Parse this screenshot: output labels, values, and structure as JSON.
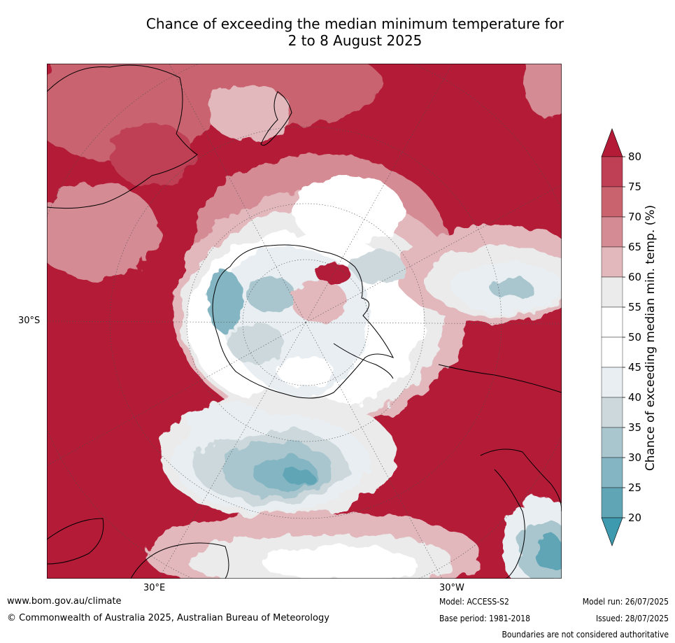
{
  "header": {
    "title_line1": "Chance of exceeding the median minimum temperature for",
    "title_line2": "2 to 8 August 2025"
  },
  "map": {
    "lat_label": "30°S",
    "lon_label_left": "30°E",
    "lon_label_right": "30°W",
    "palette": {
      "dark_red": "#b31b37",
      "red_75": "#bf3f55",
      "red_70": "#c9646f",
      "red_65": "#d48b93",
      "red_60": "#e2b8bd",
      "grey_55": "#ebebeb",
      "white_50": "#ffffff",
      "blue_40": "#e8eef1",
      "blue_35": "#cdd8dc",
      "blue_30": "#a9c6ce",
      "blue_25": "#84b5c3",
      "blue_20": "#5fa5b6",
      "teal": "#3e9aae"
    }
  },
  "colorbar": {
    "title": "Chance of exceeding median min. temp. (%)",
    "ticks": [
      "80",
      "75",
      "70",
      "65",
      "60",
      "55",
      "50",
      "45",
      "40",
      "35",
      "30",
      "25",
      "20"
    ],
    "colors": [
      "#b31b37",
      "#bf3f55",
      "#c9646f",
      "#d48b93",
      "#e2b8bd",
      "#ebebeb",
      "#ffffff",
      "#ffffff",
      "#e8eef1",
      "#cdd8dc",
      "#a9c6ce",
      "#84b5c3",
      "#5fa5b6",
      "#3e9aae"
    ]
  },
  "footer": {
    "website": "www.bom.gov.au/climate",
    "copyright": "© Commonwealth of Australia 2025, Australian Bureau of Meteorology",
    "model": "Model: ACCESS-S2",
    "base_period": "Base period: 1981-2018",
    "model_run": "Model run: 26/07/2025",
    "issued": "Issued: 28/07/2025",
    "disclaimer": "Boundaries are not considered authoritative"
  }
}
